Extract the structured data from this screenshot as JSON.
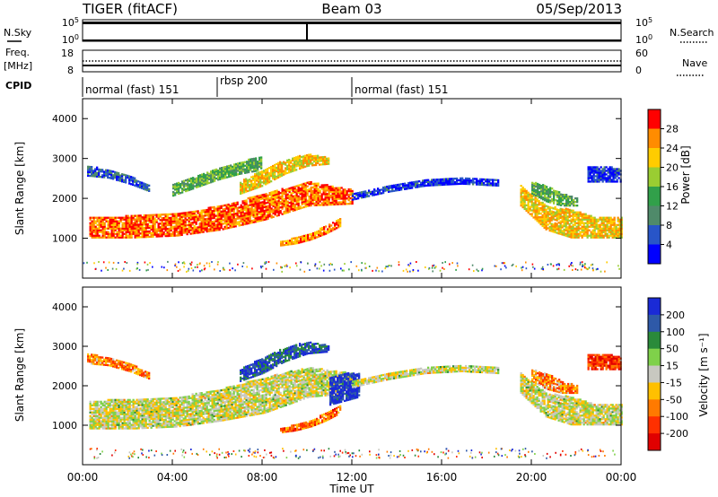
{
  "header": {
    "station": "TIGER (fitACF)",
    "beam": "Beam 03",
    "date": "05/Sep/2013"
  },
  "aux_panels": {
    "nsky_label": "N.Sky",
    "nsky_ticks": [
      "10^5",
      "10^0"
    ],
    "nsearch_label": "N.Search",
    "nsearch_ticks": [
      "10^5",
      "10^0"
    ],
    "freq_label": "Freq.",
    "freq_unit": "[MHz]",
    "freq_ticks": [
      "18",
      "8"
    ],
    "nave_label": "Nave",
    "nave_ticks": [
      "60",
      "0"
    ],
    "cpid_label": "CPID"
  },
  "cpid_segments": [
    {
      "label": "normal (fast) 151",
      "start_h": 0,
      "end_h": 6
    },
    {
      "label": "rbsp 200",
      "start_h": 6,
      "end_h": 12
    },
    {
      "label": "normal (fast) 151",
      "start_h": 12,
      "end_h": 24
    }
  ],
  "chart_data": [
    {
      "type": "heatmap",
      "name": "power",
      "ylabel": "Slant Range [km]",
      "ylim": [
        0,
        4500
      ],
      "yticks": [
        1000,
        2000,
        3000,
        4000
      ],
      "xlim": [
        0,
        24
      ],
      "colorbar": {
        "label": "Power [dB]",
        "ticks": [
          4,
          8,
          12,
          16,
          20,
          24,
          28
        ],
        "range": [
          0,
          32
        ],
        "colors": [
          "#0000ff",
          "#2855c8",
          "#4f8a6a",
          "#31a04a",
          "#9acd32",
          "#ffcc00",
          "#ff8c00",
          "#ff0000"
        ]
      },
      "echo_bands": [
        {
          "t0": 0.3,
          "t1": 12.0,
          "r0": [
            1000,
            1000,
            1050,
            1200,
            1450,
            1800,
            1850
          ],
          "r1": [
            1500,
            1550,
            1600,
            1800,
            2100,
            2400,
            2200
          ],
          "level": 0.85
        },
        {
          "t0": 7.0,
          "t1": 11.0,
          "r0": [
            2100,
            2300,
            2600,
            2800,
            2850
          ],
          "r1": [
            2400,
            2700,
            2950,
            3100,
            3000
          ],
          "level": 0.7
        },
        {
          "t0": 8.8,
          "t1": 11.5,
          "r0": [
            800,
            850,
            950,
            1100,
            1300
          ],
          "r1": [
            900,
            1000,
            1100,
            1300,
            1500
          ],
          "level": 0.8
        },
        {
          "t0": 0.2,
          "t1": 3.0,
          "r0": [
            2550,
            2500,
            2350,
            2150
          ],
          "r1": [
            2800,
            2700,
            2550,
            2300
          ],
          "level": 0.2
        },
        {
          "t0": 4.0,
          "t1": 8.0,
          "r0": [
            2050,
            2250,
            2450,
            2600,
            2700
          ],
          "r1": [
            2350,
            2550,
            2750,
            2900,
            3050
          ],
          "level": 0.45
        },
        {
          "t0": 12.0,
          "t1": 18.5,
          "r0": [
            1950,
            2150,
            2300,
            2350,
            2300
          ],
          "r1": [
            2100,
            2300,
            2450,
            2500,
            2450
          ],
          "level": 0.12
        },
        {
          "t0": 19.5,
          "t1": 24.0,
          "r0": [
            1800,
            1200,
            1000,
            1000,
            1000
          ],
          "r1": [
            2300,
            1800,
            1700,
            1500,
            1500
          ],
          "level": 0.7
        },
        {
          "t0": 20.0,
          "t1": 22.0,
          "r0": [
            2100,
            1900,
            1800,
            1800
          ],
          "r1": [
            2400,
            2300,
            2100,
            2000
          ],
          "level": 0.45
        },
        {
          "t0": 22.5,
          "t1": 24.0,
          "r0": [
            2400,
            2400,
            2400
          ],
          "r1": [
            2800,
            2800,
            2700
          ],
          "level": 0.12
        }
      ]
    },
    {
      "type": "heatmap",
      "name": "velocity",
      "xlabel": "Time UT",
      "ylabel": "Slant Range [km]",
      "ylim": [
        0,
        4500
      ],
      "yticks": [
        1000,
        2000,
        3000,
        4000
      ],
      "xlim": [
        0,
        24
      ],
      "xticks": [
        "00:00",
        "04:00",
        "08:00",
        "12:00",
        "16:00",
        "20:00",
        "00:00"
      ],
      "colorbar": {
        "label": "Velocity [m s⁻¹]",
        "ticks": [
          200,
          100,
          50,
          15,
          -15,
          -50,
          -100,
          -200
        ],
        "colors": [
          "#1a2ad6",
          "#2e59a8",
          "#2a8a3a",
          "#7fd14a",
          "#c8c8c0",
          "#ffc000",
          "#ff7a00",
          "#ff3000",
          "#e00000"
        ]
      },
      "echo_bands": [
        {
          "t0": 0.3,
          "t1": 12.0,
          "r0": [
            900,
            900,
            950,
            1100,
            1300,
            1700,
            1800
          ],
          "r1": [
            1600,
            1650,
            1700,
            1900,
            2200,
            2450,
            2300
          ],
          "level": 0.5
        },
        {
          "t0": 7.0,
          "t1": 11.0,
          "r0": [
            2100,
            2300,
            2600,
            2800,
            2850
          ],
          "r1": [
            2400,
            2700,
            2950,
            3100,
            3000
          ],
          "level": 0.15
        },
        {
          "t0": 8.8,
          "t1": 11.5,
          "r0": [
            800,
            850,
            950,
            1100,
            1300
          ],
          "r1": [
            900,
            1000,
            1100,
            1300,
            1500
          ],
          "level": 0.75
        },
        {
          "t0": 0.2,
          "t1": 3.0,
          "r0": [
            2550,
            2500,
            2350,
            2150
          ],
          "r1": [
            2800,
            2700,
            2550,
            2300
          ],
          "level": 0.7
        },
        {
          "t0": 11.0,
          "t1": 12.3,
          "r0": [
            1500,
            1600,
            1700
          ],
          "r1": [
            2200,
            2300,
            2300
          ],
          "level": 0.05
        },
        {
          "t0": 12.0,
          "t1": 18.5,
          "r0": [
            1950,
            2150,
            2300,
            2350,
            2300
          ],
          "r1": [
            2100,
            2300,
            2450,
            2500,
            2450
          ],
          "level": 0.5
        },
        {
          "t0": 19.5,
          "t1": 24.0,
          "r0": [
            1800,
            1200,
            1000,
            1000,
            1000
          ],
          "r1": [
            2300,
            1800,
            1700,
            1500,
            1500
          ],
          "level": 0.5
        },
        {
          "t0": 20.0,
          "t1": 22.0,
          "r0": [
            2100,
            1900,
            1800,
            1800
          ],
          "r1": [
            2400,
            2300,
            2100,
            2000
          ],
          "level": 0.7
        },
        {
          "t0": 22.5,
          "t1": 24.0,
          "r0": [
            2400,
            2400,
            2400
          ],
          "r1": [
            2800,
            2800,
            2700
          ],
          "level": 0.85
        }
      ]
    }
  ]
}
